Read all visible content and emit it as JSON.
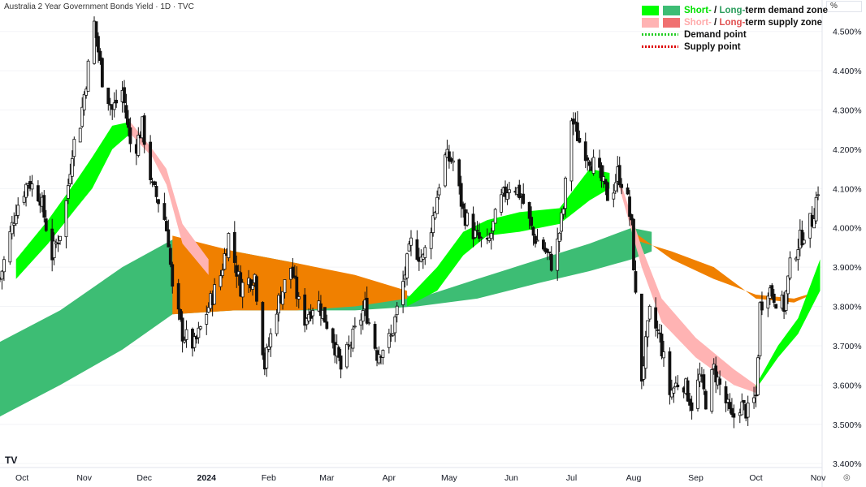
{
  "header": {
    "title": "Australia 2 Year Government Bonds Yield · 1D · TVC",
    "unit": "%"
  },
  "legend": {
    "demand_zone": {
      "short": "Short-",
      "sep": " / ",
      "long": "Long-",
      "rest": "term demand zone"
    },
    "supply_zone": {
      "short": "Short-",
      "sep": " / ",
      "long": "Long-",
      "rest": "term supply zone"
    },
    "demand_point": "Demand point",
    "supply_point": "Supply point"
  },
  "colors": {
    "short_demand": "#00ff00",
    "long_demand": "#3dbd74",
    "short_supply": "#ffb3b3",
    "long_supply": "#f07070",
    "overlap": "#f08000",
    "demand_point": "#22cc22",
    "supply_point": "#dd0000",
    "candle": "#111111"
  },
  "icons": {
    "logo": "tradingview-logo-icon",
    "settings": "settings-icon"
  },
  "logo_text": "TV",
  "settings_glyph": "◎",
  "chart_data": {
    "type": "candlestick",
    "x_axis": {
      "tick_labels": [
        "Oct",
        "Nov",
        "Dec",
        "2024",
        "Feb",
        "Mar",
        "Apr",
        "May",
        "Jun",
        "Jul",
        "Aug",
        "Sep",
        "Oct",
        "Nov"
      ],
      "tick_dates": [
        "2023-10-01",
        "2023-11-01",
        "2023-12-01",
        "2024-01-01",
        "2024-02-01",
        "2024-03-01",
        "2024-04-01",
        "2024-05-01",
        "2024-06-01",
        "2024-07-01",
        "2024-08-01",
        "2024-09-01",
        "2024-10-01",
        "2024-11-01"
      ],
      "range": [
        "2023-09-20",
        "2024-11-03"
      ]
    },
    "y_axis": {
      "tick_labels": [
        "3.400%",
        "3.500%",
        "3.600%",
        "3.700%",
        "3.800%",
        "3.900%",
        "4.000%",
        "4.100%",
        "4.200%",
        "4.300%",
        "4.400%",
        "4.500%"
      ],
      "ticks": [
        3.4,
        3.5,
        3.6,
        3.7,
        3.8,
        3.9,
        4.0,
        4.1,
        4.2,
        4.3,
        4.4,
        4.5
      ],
      "range": [
        3.39,
        4.58
      ]
    },
    "price_path": [
      [
        "2023-09-20",
        3.87
      ],
      [
        "2023-09-28",
        4.05
      ],
      [
        "2023-10-04",
        4.12
      ],
      [
        "2023-10-10",
        4.08
      ],
      [
        "2023-10-16",
        3.93
      ],
      [
        "2023-10-22",
        4.02
      ],
      [
        "2023-10-26",
        4.2
      ],
      [
        "2023-10-30",
        4.27
      ],
      [
        "2023-11-03",
        4.41
      ],
      [
        "2023-11-06",
        4.52
      ],
      [
        "2023-11-10",
        4.38
      ],
      [
        "2023-11-15",
        4.3
      ],
      [
        "2023-11-20",
        4.35
      ],
      [
        "2023-11-25",
        4.18
      ],
      [
        "2023-11-30",
        4.26
      ],
      [
        "2023-12-05",
        4.1
      ],
      [
        "2023-12-10",
        4.05
      ],
      [
        "2023-12-13",
        3.97
      ],
      [
        "2023-12-15",
        3.84
      ],
      [
        "2023-12-20",
        3.73
      ],
      [
        "2023-12-26",
        3.7
      ],
      [
        "2024-01-02",
        3.8
      ],
      [
        "2024-01-08",
        3.88
      ],
      [
        "2024-01-12",
        3.98
      ],
      [
        "2024-01-18",
        3.85
      ],
      [
        "2024-01-25",
        3.88
      ],
      [
        "2024-01-30",
        3.65
      ],
      [
        "2024-02-05",
        3.8
      ],
      [
        "2024-02-12",
        3.9
      ],
      [
        "2024-02-18",
        3.76
      ],
      [
        "2024-02-25",
        3.82
      ],
      [
        "2024-03-04",
        3.72
      ],
      [
        "2024-03-08",
        3.64
      ],
      [
        "2024-03-14",
        3.72
      ],
      [
        "2024-03-20",
        3.8
      ],
      [
        "2024-03-26",
        3.68
      ],
      [
        "2024-04-02",
        3.72
      ],
      [
        "2024-04-08",
        3.86
      ],
      [
        "2024-04-12",
        3.96
      ],
      [
        "2024-04-18",
        3.92
      ],
      [
        "2024-04-24",
        4.05
      ],
      [
        "2024-04-28",
        4.18
      ],
      [
        "2024-05-03",
        4.17
      ],
      [
        "2024-05-08",
        4.04
      ],
      [
        "2024-05-14",
        3.98
      ],
      [
        "2024-05-20",
        3.95
      ],
      [
        "2024-05-26",
        4.06
      ],
      [
        "2024-06-01",
        4.12
      ],
      [
        "2024-06-06",
        4.08
      ],
      [
        "2024-06-12",
        3.98
      ],
      [
        "2024-06-17",
        3.95
      ],
      [
        "2024-06-22",
        3.9
      ],
      [
        "2024-06-27",
        4.05
      ],
      [
        "2024-07-01",
        4.28
      ],
      [
        "2024-07-05",
        4.22
      ],
      [
        "2024-07-10",
        4.18
      ],
      [
        "2024-07-15",
        4.13
      ],
      [
        "2024-07-20",
        4.07
      ],
      [
        "2024-07-24",
        4.14
      ],
      [
        "2024-07-28",
        4.1
      ],
      [
        "2024-07-31",
        4.0
      ],
      [
        "2024-08-02",
        3.82
      ],
      [
        "2024-08-05",
        3.62
      ],
      [
        "2024-08-09",
        3.78
      ],
      [
        "2024-08-14",
        3.72
      ],
      [
        "2024-08-19",
        3.58
      ],
      [
        "2024-08-25",
        3.62
      ],
      [
        "2024-08-30",
        3.55
      ],
      [
        "2024-09-03",
        3.62
      ],
      [
        "2024-09-06",
        3.56
      ],
      [
        "2024-09-10",
        3.64
      ],
      [
        "2024-09-15",
        3.57
      ],
      [
        "2024-09-19",
        3.51
      ],
      [
        "2024-09-23",
        3.55
      ],
      [
        "2024-09-27",
        3.53
      ],
      [
        "2024-10-01",
        3.57
      ],
      [
        "2024-10-03",
        3.8
      ],
      [
        "2024-10-07",
        3.85
      ],
      [
        "2024-10-11",
        3.82
      ],
      [
        "2024-10-15",
        3.8
      ],
      [
        "2024-10-18",
        3.9
      ],
      [
        "2024-10-22",
        3.96
      ],
      [
        "2024-10-26",
        4.0
      ],
      [
        "2024-10-29",
        4.02
      ],
      [
        "2024-11-01",
        4.1
      ]
    ],
    "bands": [
      {
        "name": "Long-term demand zone (lower portion)",
        "color_key": "long_demand",
        "upper": [
          [
            "2023-09-20",
            3.71
          ],
          [
            "2023-10-20",
            3.79
          ],
          [
            "2023-11-20",
            3.9
          ],
          [
            "2023-12-15",
            3.97
          ],
          [
            "2024-01-15",
            3.94
          ],
          [
            "2024-02-15",
            3.91
          ],
          [
            "2024-03-15",
            3.87
          ],
          [
            "2024-04-15",
            3.82
          ],
          [
            "2024-05-15",
            3.87
          ],
          [
            "2024-06-15",
            3.92
          ],
          [
            "2024-07-10",
            3.96
          ],
          [
            "2024-07-31",
            4.0
          ],
          [
            "2024-08-10",
            3.99
          ]
        ],
        "lower": [
          [
            "2023-09-20",
            3.52
          ],
          [
            "2023-10-20",
            3.6
          ],
          [
            "2023-11-20",
            3.69
          ],
          [
            "2023-12-15",
            3.78
          ],
          [
            "2024-01-15",
            3.79
          ],
          [
            "2024-02-15",
            3.79
          ],
          [
            "2024-03-15",
            3.79
          ],
          [
            "2024-04-15",
            3.8
          ],
          [
            "2024-05-15",
            3.82
          ],
          [
            "2024-06-15",
            3.86
          ],
          [
            "2024-07-10",
            3.89
          ],
          [
            "2024-07-31",
            3.92
          ],
          [
            "2024-08-10",
            3.94
          ]
        ]
      },
      {
        "name": "Long-term supply / demand overlap",
        "color_key": "overlap",
        "upper": [
          [
            "2023-12-15",
            3.98
          ],
          [
            "2024-01-15",
            3.94
          ],
          [
            "2024-02-15",
            3.91
          ],
          [
            "2024-03-15",
            3.88
          ],
          [
            "2024-04-10",
            3.84
          ]
        ],
        "lower": [
          [
            "2023-12-15",
            3.78
          ],
          [
            "2024-01-15",
            3.79
          ],
          [
            "2024-02-15",
            3.79
          ],
          [
            "2024-03-15",
            3.8
          ],
          [
            "2024-04-10",
            3.82
          ]
        ]
      },
      {
        "name": "Long-term supply zone (late)",
        "color_key": "overlap",
        "upper": [
          [
            "2024-08-01",
            3.99
          ],
          [
            "2024-08-20",
            3.92
          ],
          [
            "2024-09-10",
            3.87
          ],
          [
            "2024-10-01",
            3.83
          ],
          [
            "2024-10-20",
            3.82
          ],
          [
            "2024-11-02",
            3.84
          ]
        ],
        "lower": [
          [
            "2024-08-01",
            3.97
          ],
          [
            "2024-08-20",
            3.94
          ],
          [
            "2024-09-10",
            3.9
          ],
          [
            "2024-10-01",
            3.82
          ],
          [
            "2024-10-20",
            3.81
          ],
          [
            "2024-11-02",
            3.84
          ]
        ]
      },
      {
        "name": "Short-term demand zone 1",
        "color_key": "short_demand",
        "upper": [
          [
            "2023-09-28",
            3.92
          ],
          [
            "2023-10-14",
            4.02
          ],
          [
            "2023-10-28",
            4.12
          ],
          [
            "2023-11-05",
            4.18
          ],
          [
            "2023-11-15",
            4.26
          ],
          [
            "2023-11-24",
            4.27
          ]
        ],
        "lower": [
          [
            "2023-09-28",
            3.87
          ],
          [
            "2023-10-14",
            3.96
          ],
          [
            "2023-10-28",
            4.05
          ],
          [
            "2023-11-05",
            4.1
          ],
          [
            "2023-11-15",
            4.2
          ],
          [
            "2023-11-24",
            4.24
          ]
        ]
      },
      {
        "name": "Short-term supply zone 1",
        "color_key": "short_supply",
        "upper": [
          [
            "2023-11-24",
            4.27
          ],
          [
            "2023-12-05",
            4.2
          ],
          [
            "2023-12-12",
            4.15
          ],
          [
            "2023-12-20",
            4.01
          ],
          [
            "2024-01-02",
            3.92
          ]
        ],
        "lower": [
          [
            "2023-11-24",
            4.24
          ],
          [
            "2023-12-05",
            4.18
          ],
          [
            "2023-12-12",
            4.11
          ],
          [
            "2023-12-20",
            3.96
          ],
          [
            "2024-01-02",
            3.88
          ]
        ]
      },
      {
        "name": "Short-term demand zone 2",
        "color_key": "short_demand",
        "upper": [
          [
            "2024-04-10",
            3.82
          ],
          [
            "2024-04-25",
            3.9
          ],
          [
            "2024-05-08",
            3.99
          ],
          [
            "2024-05-20",
            4.02
          ],
          [
            "2024-06-05",
            4.04
          ],
          [
            "2024-06-25",
            4.05
          ],
          [
            "2024-07-10",
            4.15
          ],
          [
            "2024-07-20",
            4.14
          ]
        ],
        "lower": [
          [
            "2024-04-10",
            3.8
          ],
          [
            "2024-04-25",
            3.84
          ],
          [
            "2024-05-08",
            3.93
          ],
          [
            "2024-05-20",
            3.98
          ],
          [
            "2024-06-05",
            3.99
          ],
          [
            "2024-06-25",
            4.01
          ],
          [
            "2024-07-10",
            4.07
          ],
          [
            "2024-07-20",
            4.1
          ]
        ]
      },
      {
        "name": "Short-term supply zone 2",
        "color_key": "short_supply",
        "upper": [
          [
            "2024-07-24",
            4.14
          ],
          [
            "2024-08-05",
            3.95
          ],
          [
            "2024-08-15",
            3.82
          ],
          [
            "2024-09-01",
            3.72
          ],
          [
            "2024-09-20",
            3.64
          ],
          [
            "2024-10-01",
            3.6
          ]
        ],
        "lower": [
          [
            "2024-07-24",
            4.12
          ],
          [
            "2024-08-05",
            3.9
          ],
          [
            "2024-08-15",
            3.76
          ],
          [
            "2024-09-01",
            3.67
          ],
          [
            "2024-09-20",
            3.6
          ],
          [
            "2024-10-01",
            3.58
          ]
        ]
      },
      {
        "name": "Short-term demand zone 3",
        "color_key": "short_demand",
        "upper": [
          [
            "2024-10-01",
            3.6
          ],
          [
            "2024-10-12",
            3.7
          ],
          [
            "2024-10-22",
            3.77
          ],
          [
            "2024-11-02",
            3.92
          ]
        ],
        "lower": [
          [
            "2024-10-01",
            3.59
          ],
          [
            "2024-10-12",
            3.67
          ],
          [
            "2024-10-22",
            3.73
          ],
          [
            "2024-11-02",
            3.84
          ]
        ]
      }
    ]
  }
}
